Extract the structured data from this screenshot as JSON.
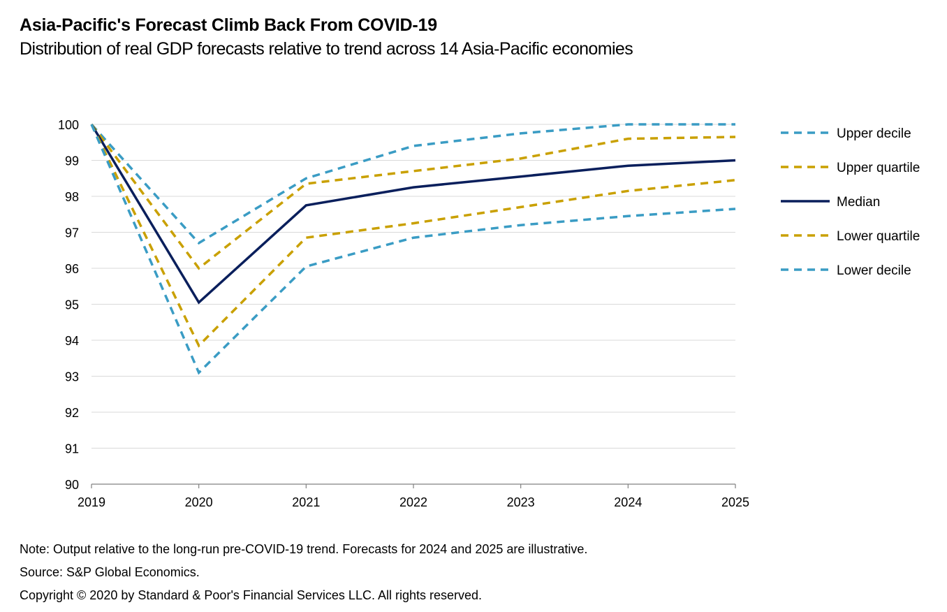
{
  "title": "Asia-Pacific's Forecast Climb Back From COVID-19",
  "subtitle": "Distribution of real GDP forecasts relative to trend across 14 Asia-Pacific economies",
  "note": "Note: Output relative to the long-run pre-COVID-19 trend. Forecasts for 2024 and 2025 are illustrative.",
  "source": "Source: S&P Global Economics.",
  "copyright": "Copyright © 2020 by Standard & Poor's Financial Services LLC. All rights reserved.",
  "chart_data": {
    "type": "line",
    "title": "Asia-Pacific's Forecast Climb Back From COVID-19",
    "subtitle": "Distribution of real GDP forecasts relative to trend across 14 Asia-Pacific economies",
    "xlabel": "",
    "ylabel": "",
    "x": [
      "2019",
      "2020",
      "2021",
      "2022",
      "2023",
      "2024",
      "2025"
    ],
    "ylim": [
      90,
      100
    ],
    "yticks": [
      "90",
      "91",
      "92",
      "93",
      "94",
      "95",
      "96",
      "97",
      "98",
      "99",
      "100"
    ],
    "grid": true,
    "legend_position": "right",
    "series": [
      {
        "name": "Upper decile",
        "values": [
          100,
          96.7,
          98.5,
          99.4,
          99.75,
          100,
          100
        ],
        "color": "#3a9cc4",
        "style": "dashed"
      },
      {
        "name": "Upper quartile",
        "values": [
          100,
          96.0,
          98.35,
          98.7,
          99.05,
          99.6,
          99.65
        ],
        "color": "#c9a000",
        "style": "dashed"
      },
      {
        "name": "Median",
        "values": [
          100,
          95.05,
          97.75,
          98.25,
          98.55,
          98.85,
          99.0
        ],
        "color": "#0a1f5c",
        "style": "solid"
      },
      {
        "name": "Lower quartile",
        "values": [
          100,
          93.85,
          96.85,
          97.25,
          97.7,
          98.15,
          98.45
        ],
        "color": "#c9a000",
        "style": "dashed"
      },
      {
        "name": "Lower decile",
        "values": [
          100,
          93.1,
          96.05,
          96.85,
          97.2,
          97.45,
          97.65
        ],
        "color": "#3a9cc4",
        "style": "dashed"
      }
    ]
  }
}
